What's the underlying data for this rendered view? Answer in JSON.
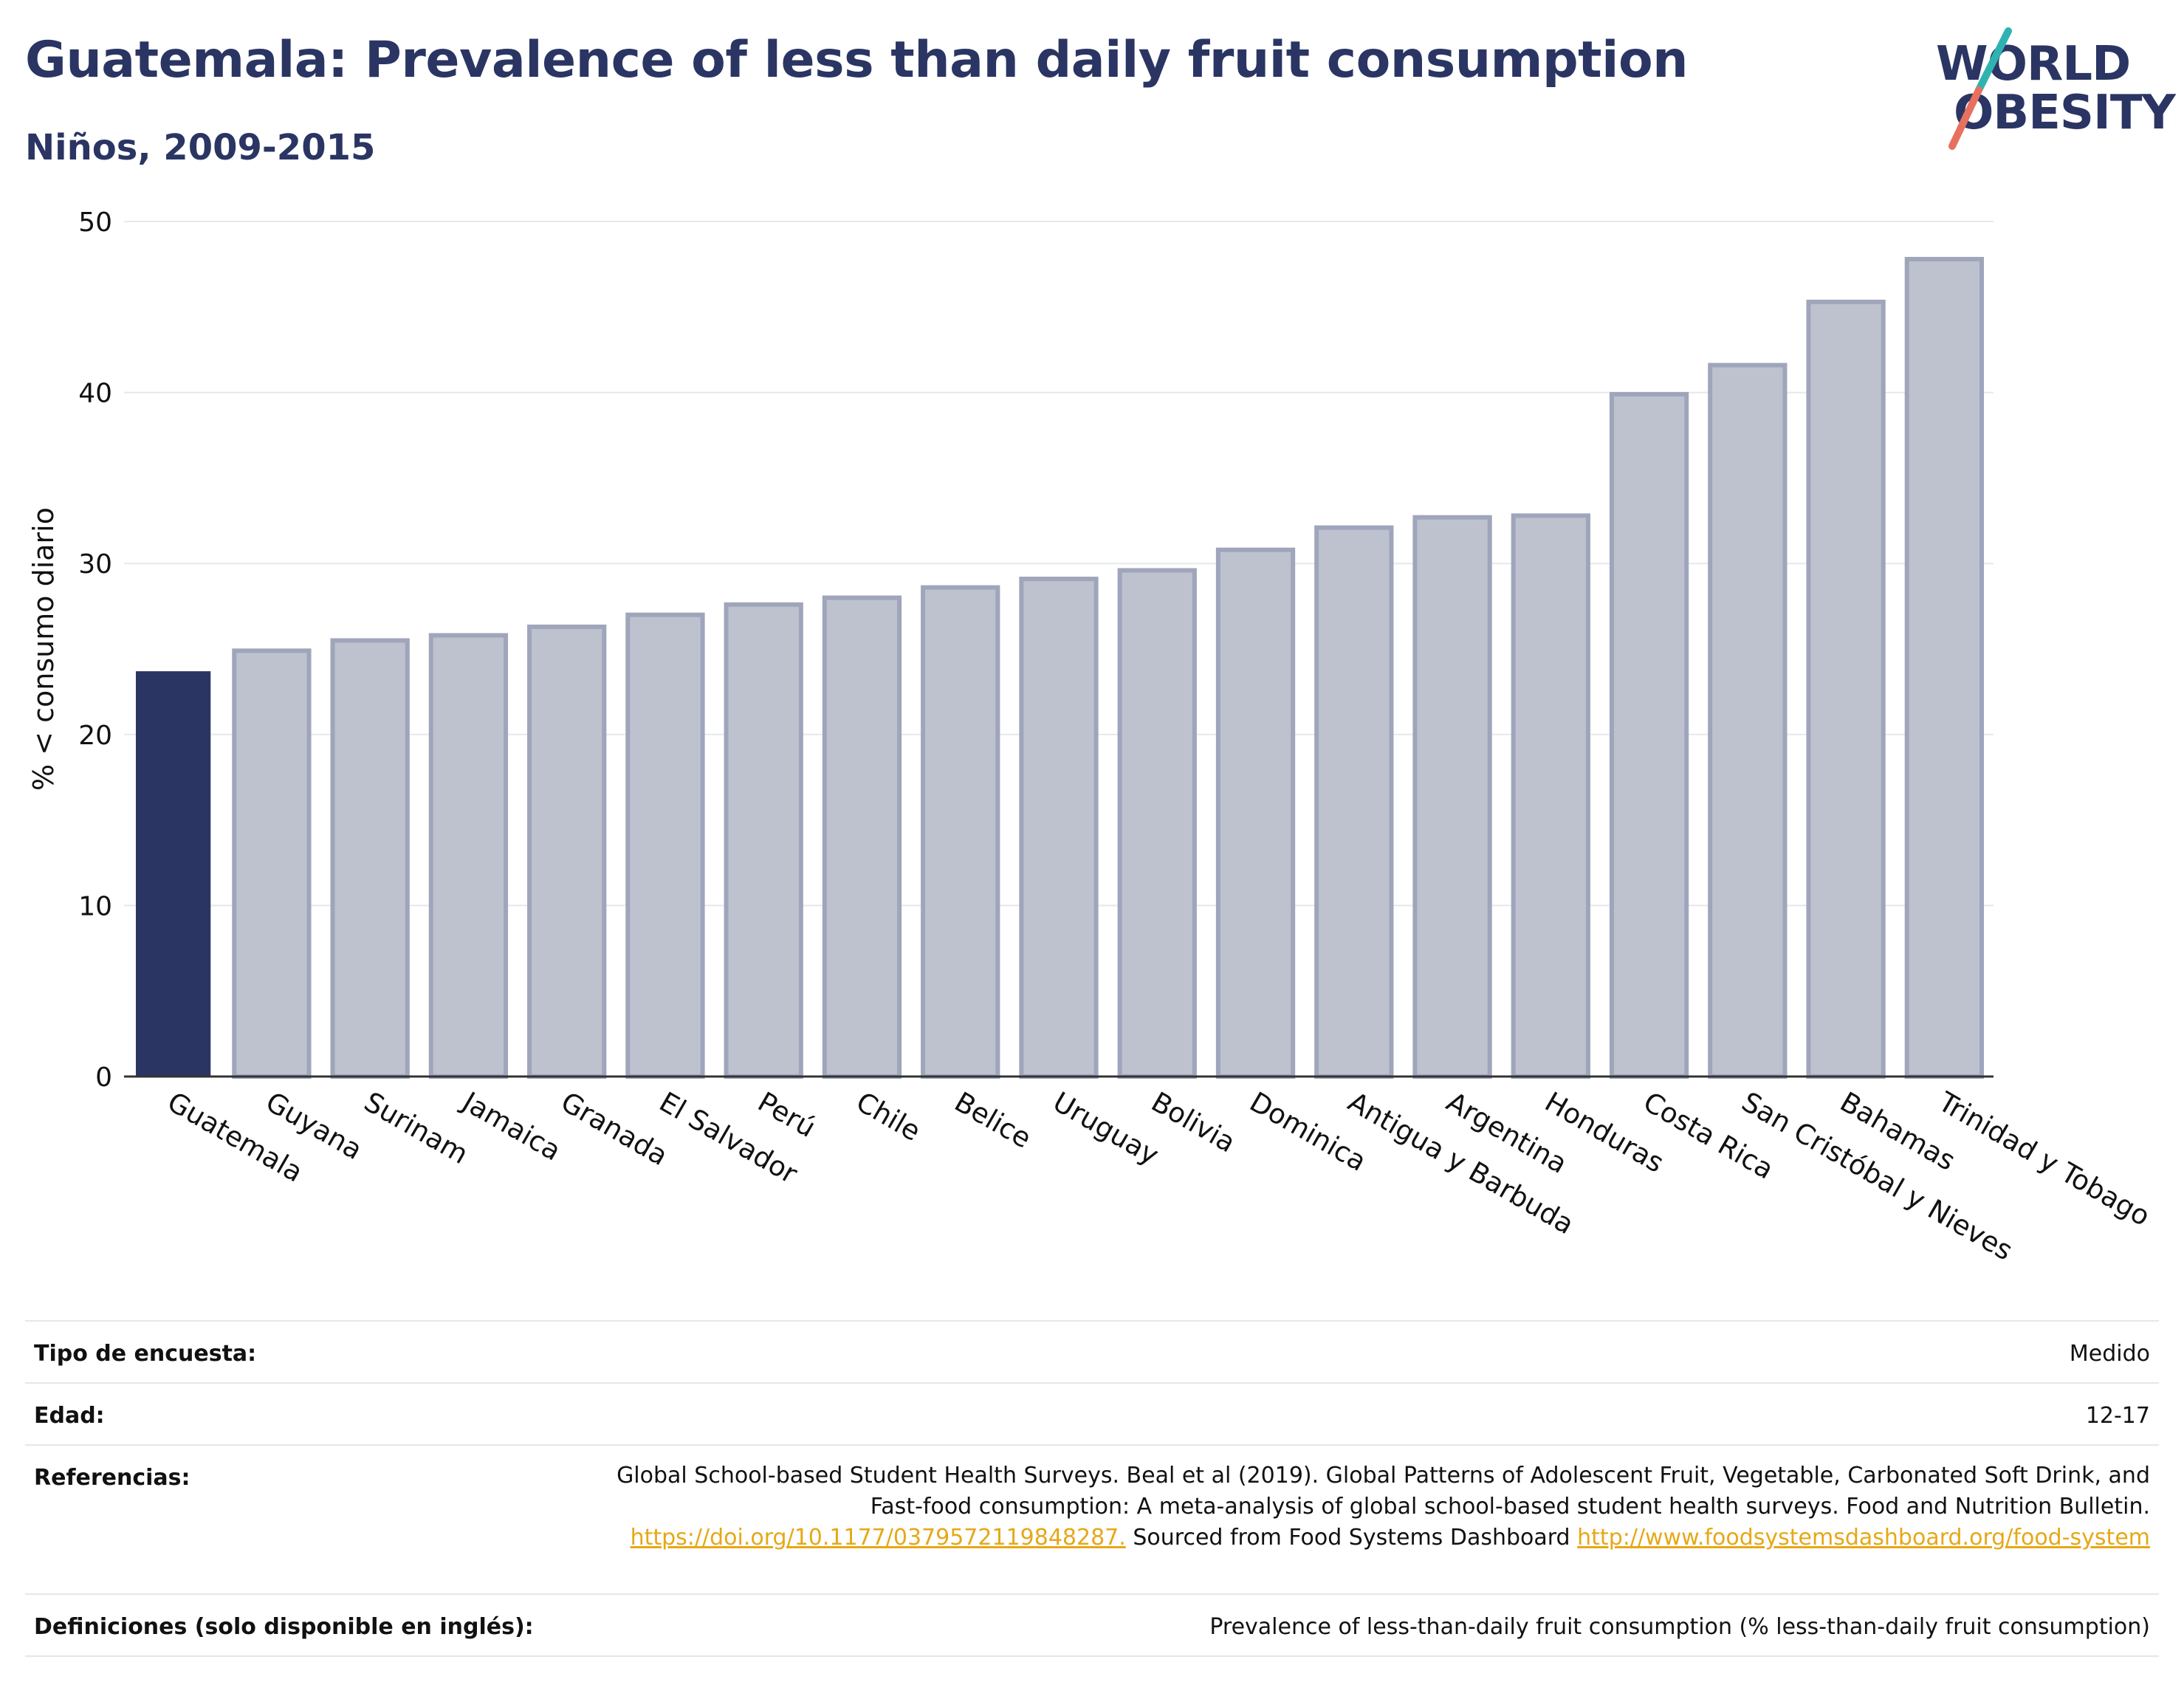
{
  "header": {
    "title": "Guatemala: Prevalence of less than daily fruit consumption",
    "subtitle": "Niños, 2009-2015"
  },
  "logo": {
    "line1": "WORLD",
    "line2": "OBESITY"
  },
  "colors": {
    "highlight": "#2a3563",
    "bar_fill": "#bec2cf",
    "bar_stroke": "#9fa5bb",
    "grid": "#e6e8ee",
    "link": "#e6a817"
  },
  "chart_data": {
    "type": "bar",
    "title": "Guatemala: Prevalence of less than daily fruit consumption",
    "subtitle": "Niños, 2009-2015",
    "xlabel": "",
    "ylabel": "% < consumo diario",
    "ylim": [
      0,
      50
    ],
    "yticks": [
      0,
      10,
      20,
      30,
      40,
      50
    ],
    "grid": true,
    "highlight": "Guatemala",
    "categories": [
      "Guatemala",
      "Guyana",
      "Surinam",
      "Jamaica",
      "Granada",
      "El Salvador",
      "Perú",
      "Chile",
      "Belice",
      "Uruguay",
      "Bolivia",
      "Dominica",
      "Antigua y Barbuda",
      "Argentina",
      "Honduras",
      "Costa Rica",
      "San Cristóbal y Nieves",
      "Bahamas",
      "Trinidad y Tobago"
    ],
    "values": [
      23.7,
      24.9,
      25.5,
      25.8,
      26.3,
      27.0,
      27.6,
      28.0,
      28.6,
      29.1,
      29.6,
      30.8,
      32.1,
      32.7,
      32.8,
      39.9,
      41.6,
      45.3,
      47.8
    ]
  },
  "info": {
    "survey_type_label": "Tipo de encuesta:",
    "survey_type_value": "Medido",
    "age_label": "Edad:",
    "age_value": "12-17",
    "references_label": "Referencias:",
    "references_text_1": "Global School-based Student Health Surveys. Beal et al (2019). Global Patterns of Adolescent Fruit, Vegetable, Carbonated Soft Drink, and Fast-food consumption: A meta-analysis of global school-based student health surveys. Food and Nutrition Bulletin.",
    "references_link_1": "https://doi.org/10.1177/0379572119848287.",
    "references_text_2": "Sourced from Food Systems Dashboard",
    "references_link_2": "http://www.foodsystemsdashboard.org/food-system",
    "definitions_label": "Definiciones (solo disponible en inglés):",
    "definitions_value": "Prevalence of less-than-daily fruit consumption (% less-than-daily fruit consumption)"
  }
}
